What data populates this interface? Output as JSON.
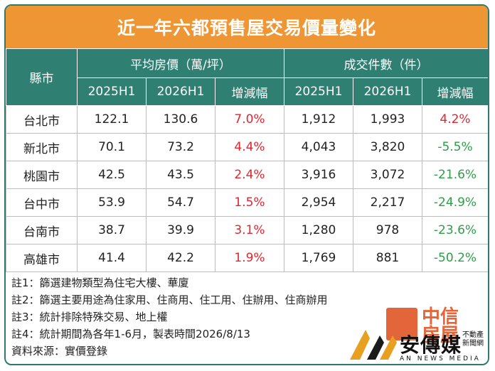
{
  "title": "近一年六都預售屋交易價量變化",
  "header": {
    "county": "縣市",
    "price_group": "平均房價（萬/坪）",
    "count_group": "成交件數（件）",
    "sub": [
      "2025H1",
      "2026H1",
      "增減幅",
      "2025H1",
      "2026H1",
      "增減幅"
    ]
  },
  "rows": [
    {
      "city": "台北市",
      "p1": "122.1",
      "p2": "130.6",
      "pc": "7.0%",
      "c1": "1,912",
      "c2": "1,993",
      "cc": "4.2%"
    },
    {
      "city": "新北市",
      "p1": "70.1",
      "p2": "73.2",
      "pc": "4.4%",
      "c1": "4,043",
      "c2": "3,820",
      "cc": "-5.5%"
    },
    {
      "city": "桃園市",
      "p1": "42.5",
      "p2": "43.5",
      "pc": "2.4%",
      "c1": "3,916",
      "c2": "3,072",
      "cc": "-21.6%"
    },
    {
      "city": "台中市",
      "p1": "53.9",
      "p2": "54.7",
      "pc": "1.5%",
      "c1": "2,954",
      "c2": "2,217",
      "cc": "-24.9%"
    },
    {
      "city": "台南市",
      "p1": "38.7",
      "p2": "39.9",
      "pc": "3.1%",
      "c1": "1,280",
      "c2": "978",
      "cc": "-23.6%"
    },
    {
      "city": "高雄市",
      "p1": "41.4",
      "p2": "42.2",
      "pc": "1.9%",
      "c1": "1,769",
      "c2": "881",
      "cc": "-50.2%"
    }
  ],
  "notes": [
    "註1：篩選建物類型為住宅大樓、華廈",
    "註2：篩選主要用途為住家用、住商用、住工用、住辦用、住商辦用",
    "註3：統計排除特殊交易、地上權",
    "註4：統計期間為各年1-6月，製表時間2026/8/13",
    "資料來源：實價登錄"
  ],
  "logos": {
    "zhongxin": "中信房屋",
    "anews": "安傳媒",
    "anews_sub": "不動產新聞網",
    "anews_en": "AN NEWS MEDIA"
  },
  "colors": {
    "header": "#2f7f73",
    "title": "#ee9633",
    "positive": "#e0262f",
    "negative": "#2d9e48"
  }
}
